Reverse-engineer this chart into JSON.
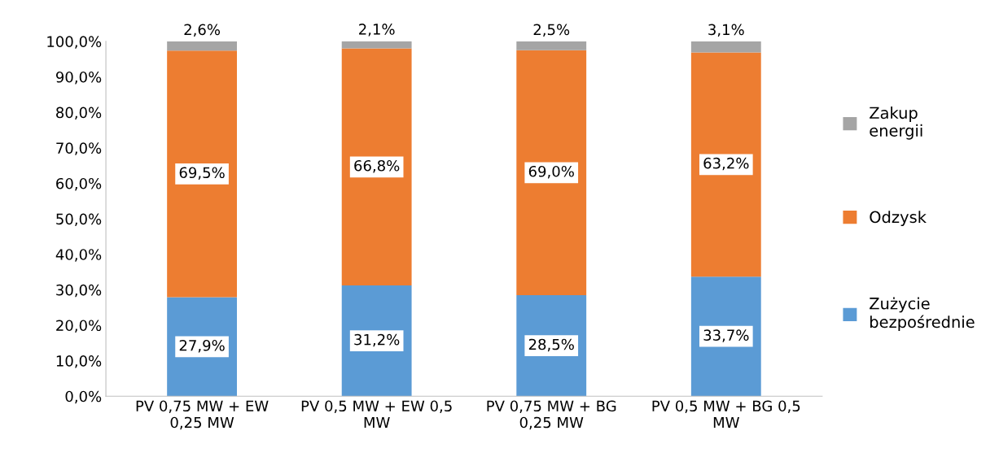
{
  "chart_data": {
    "type": "bar",
    "stacked": true,
    "categories": [
      "PV 0,75 MW + EW 0,25 MW",
      "PV 0,5 MW + EW 0,5 MW",
      "PV 0,75 MW + BG 0,25 MW",
      "PV 0,5 MW + BG 0,5 MW"
    ],
    "series": [
      {
        "name": "Zużycie bezpośrednie",
        "color": "#5b9bd5",
        "values": [
          27.9,
          31.2,
          28.5,
          33.7
        ],
        "value_labels": [
          "27,9%",
          "31,2%",
          "28,5%",
          "33,7%"
        ]
      },
      {
        "name": "Odzysk",
        "color": "#ed7d31",
        "values": [
          69.5,
          66.8,
          69.0,
          63.2
        ],
        "value_labels": [
          "69,5%",
          "66,8%",
          "69,0%",
          "63,2%"
        ]
      },
      {
        "name": "Zakup energii",
        "color": "#a5a5a5",
        "values": [
          2.6,
          2.1,
          2.5,
          3.1
        ],
        "value_labels": [
          "2,6%",
          "2,1%",
          "2,5%",
          "3,1%"
        ]
      }
    ],
    "ylim": [
      0,
      100
    ],
    "yticks": [
      {
        "value": 0,
        "label": "0,0%"
      },
      {
        "value": 10,
        "label": "10,0%"
      },
      {
        "value": 20,
        "label": "20,0%"
      },
      {
        "value": 30,
        "label": "30,0%"
      },
      {
        "value": 40,
        "label": "40,0%"
      },
      {
        "value": 50,
        "label": "50,0%"
      },
      {
        "value": 60,
        "label": "60,0%"
      },
      {
        "value": 70,
        "label": "70,0%"
      },
      {
        "value": 80,
        "label": "80,0%"
      },
      {
        "value": 90,
        "label": "90,0%"
      },
      {
        "value": 100,
        "label": "100,0%"
      }
    ],
    "legend": "right",
    "grid": false
  }
}
